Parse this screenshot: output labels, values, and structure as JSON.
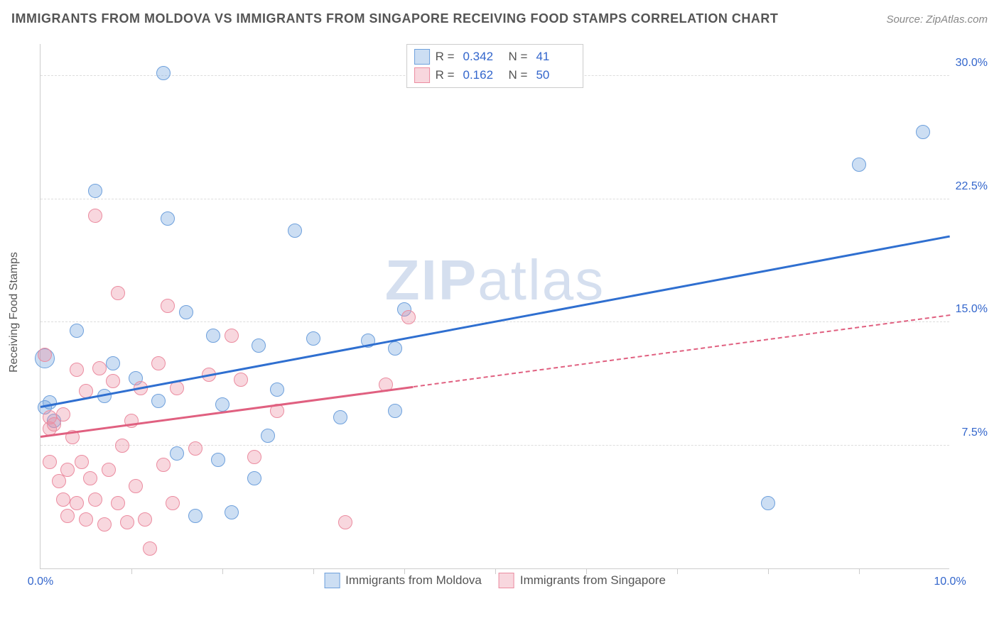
{
  "header": {
    "title": "IMMIGRANTS FROM MOLDOVA VS IMMIGRANTS FROM SINGAPORE RECEIVING FOOD STAMPS CORRELATION CHART",
    "source": "Source: ZipAtlas.com"
  },
  "watermark": {
    "part1": "ZIP",
    "part2": "atlas"
  },
  "chart": {
    "type": "scatter-with-trendlines",
    "xlim": [
      0,
      10
    ],
    "ylim": [
      0,
      32
    ],
    "xtick_labels": [
      {
        "value": 0,
        "label": "0.0%"
      },
      {
        "value": 10,
        "label": "10.0%"
      }
    ],
    "xtick_marks": [
      1,
      2,
      3,
      4,
      5,
      6,
      7,
      8,
      9
    ],
    "ytick_labels": [
      {
        "value": 7.5,
        "label": "7.5%"
      },
      {
        "value": 15.0,
        "label": "15.0%"
      },
      {
        "value": 22.5,
        "label": "22.5%"
      },
      {
        "value": 30.0,
        "label": "30.0%"
      }
    ],
    "ylabel": "Receiving Food Stamps",
    "background_color": "#ffffff",
    "grid_color": "#dddddd",
    "axis_color": "#cccccc",
    "tick_label_color": "#3366cc",
    "series": [
      {
        "id": "moldova",
        "label": "Immigrants from Moldova",
        "marker_fill": "rgba(110,160,220,0.35)",
        "marker_stroke": "#6ea0dc",
        "line_color": "#2f6fd0",
        "marker_radius": 10,
        "r": 0.342,
        "n": 41,
        "trend": {
          "x0": 0,
          "y0": 9.8,
          "x1": 10,
          "y1": 20.2,
          "solid_to_x": 10
        },
        "points": [
          {
            "x": 0.05,
            "y": 12.8,
            "r": 14
          },
          {
            "x": 0.05,
            "y": 9.8
          },
          {
            "x": 0.1,
            "y": 10.1
          },
          {
            "x": 0.15,
            "y": 9.0
          },
          {
            "x": 0.4,
            "y": 14.5
          },
          {
            "x": 0.6,
            "y": 23.0
          },
          {
            "x": 0.7,
            "y": 10.5
          },
          {
            "x": 0.8,
            "y": 12.5
          },
          {
            "x": 1.05,
            "y": 11.6
          },
          {
            "x": 1.3,
            "y": 10.2
          },
          {
            "x": 1.35,
            "y": 30.2
          },
          {
            "x": 1.4,
            "y": 21.3
          },
          {
            "x": 1.5,
            "y": 7.0
          },
          {
            "x": 1.6,
            "y": 15.6
          },
          {
            "x": 1.7,
            "y": 3.2
          },
          {
            "x": 1.9,
            "y": 14.2
          },
          {
            "x": 1.95,
            "y": 6.6
          },
          {
            "x": 2.0,
            "y": 10.0
          },
          {
            "x": 2.1,
            "y": 3.4
          },
          {
            "x": 2.35,
            "y": 5.5
          },
          {
            "x": 2.4,
            "y": 13.6
          },
          {
            "x": 2.5,
            "y": 8.1
          },
          {
            "x": 2.6,
            "y": 10.9
          },
          {
            "x": 2.8,
            "y": 20.6
          },
          {
            "x": 3.0,
            "y": 14.0
          },
          {
            "x": 3.3,
            "y": 9.2
          },
          {
            "x": 3.6,
            "y": 13.9
          },
          {
            "x": 3.9,
            "y": 9.6
          },
          {
            "x": 3.9,
            "y": 13.4
          },
          {
            "x": 4.0,
            "y": 15.8
          },
          {
            "x": 8.0,
            "y": 4.0
          },
          {
            "x": 9.0,
            "y": 24.6
          },
          {
            "x": 9.7,
            "y": 26.6
          }
        ]
      },
      {
        "id": "singapore",
        "label": "Immigrants from Singapore",
        "marker_fill": "rgba(235,140,160,0.35)",
        "marker_stroke": "#eb8ca0",
        "line_color": "#e06080",
        "marker_radius": 10,
        "r": 0.162,
        "n": 50,
        "trend": {
          "x0": 0,
          "y0": 8.0,
          "x1": 10,
          "y1": 15.4,
          "solid_to_x": 4.1
        },
        "points": [
          {
            "x": 0.05,
            "y": 13.0
          },
          {
            "x": 0.1,
            "y": 9.2
          },
          {
            "x": 0.1,
            "y": 8.5
          },
          {
            "x": 0.1,
            "y": 6.5
          },
          {
            "x": 0.15,
            "y": 8.8
          },
          {
            "x": 0.2,
            "y": 5.3
          },
          {
            "x": 0.25,
            "y": 9.4
          },
          {
            "x": 0.25,
            "y": 4.2
          },
          {
            "x": 0.3,
            "y": 6.0
          },
          {
            "x": 0.3,
            "y": 3.2
          },
          {
            "x": 0.35,
            "y": 8.0
          },
          {
            "x": 0.4,
            "y": 12.1
          },
          {
            "x": 0.4,
            "y": 4.0
          },
          {
            "x": 0.45,
            "y": 6.5
          },
          {
            "x": 0.5,
            "y": 3.0
          },
          {
            "x": 0.5,
            "y": 10.8
          },
          {
            "x": 0.55,
            "y": 5.5
          },
          {
            "x": 0.6,
            "y": 21.5
          },
          {
            "x": 0.6,
            "y": 4.2
          },
          {
            "x": 0.65,
            "y": 12.2
          },
          {
            "x": 0.7,
            "y": 2.7
          },
          {
            "x": 0.75,
            "y": 6.0
          },
          {
            "x": 0.8,
            "y": 11.4
          },
          {
            "x": 0.85,
            "y": 16.8
          },
          {
            "x": 0.85,
            "y": 4.0
          },
          {
            "x": 0.9,
            "y": 7.5
          },
          {
            "x": 0.95,
            "y": 2.8
          },
          {
            "x": 1.0,
            "y": 9.0
          },
          {
            "x": 1.05,
            "y": 5.0
          },
          {
            "x": 1.1,
            "y": 11.0
          },
          {
            "x": 1.15,
            "y": 3.0
          },
          {
            "x": 1.2,
            "y": 1.2
          },
          {
            "x": 1.3,
            "y": 12.5
          },
          {
            "x": 1.35,
            "y": 6.3
          },
          {
            "x": 1.4,
            "y": 16.0
          },
          {
            "x": 1.45,
            "y": 4.0
          },
          {
            "x": 1.5,
            "y": 11.0
          },
          {
            "x": 1.7,
            "y": 7.3
          },
          {
            "x": 1.85,
            "y": 11.8
          },
          {
            "x": 2.1,
            "y": 14.2
          },
          {
            "x": 2.2,
            "y": 11.5
          },
          {
            "x": 2.35,
            "y": 6.8
          },
          {
            "x": 2.6,
            "y": 9.6
          },
          {
            "x": 3.35,
            "y": 2.8
          },
          {
            "x": 3.8,
            "y": 11.2
          },
          {
            "x": 4.05,
            "y": 15.3
          }
        ]
      }
    ],
    "legend_top": {
      "r_label": "R =",
      "n_label": "N ="
    },
    "legend_bottom_labels": [
      "Immigrants from Moldova",
      "Immigrants from Singapore"
    ]
  }
}
